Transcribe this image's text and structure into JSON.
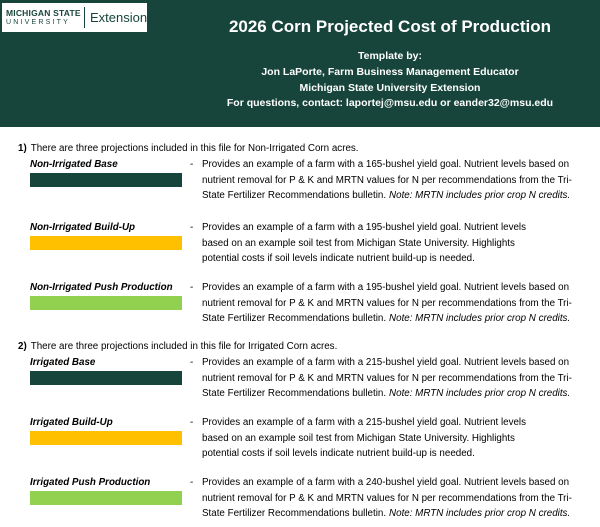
{
  "header": {
    "logo": {
      "line1": "MICHIGAN STATE",
      "line2": "UNIVERSITY",
      "extension": "Extension"
    },
    "title": "2026 Corn Projected Cost of Production",
    "template_lines": [
      "Template by:",
      "Jon LaPorte, Farm Business Management Educator",
      "Michigan State University Extension",
      "For questions, contact: laportej@msu.edu or eander32@msu.edu"
    ]
  },
  "sections": [
    {
      "number": "1)",
      "heading": "There are three projections included in this file for Non-Irrigated Corn acres.",
      "items": [
        {
          "label": "Non-Irrigated Base",
          "dash": "-",
          "lines": [
            "Provides an example of a farm with a 165-bushel yield goal.  Nutrient levels based on",
            "nutrient removal for P & K and MRTN values for N per recommendations from the Tri-",
            "State Fertilizer Recommendations bulletin."
          ],
          "note": "Note: MRTN includes prior crop N credits."
        },
        {
          "label": "Non-Irrigated Build-Up",
          "dash": "-",
          "lines": [
            "Provides an example of a farm with a 195-bushel yield goal.  Nutrient levels",
            "based on an example soil test from Michigan State University. Highlights",
            "potential costs if soil levels indicate nutrient build-up is needed."
          ]
        },
        {
          "label": "Non-Irrigated Push Production",
          "dash": "-",
          "lines": [
            "Provides an example of a farm with a 195-bushel yield goal.  Nutrient levels based on",
            "nutrient removal for P & K and MRTN values for N per recommendations from the Tri-",
            "State Fertilizer Recommendations bulletin."
          ],
          "note": "Note: MRTN includes prior crop N credits."
        }
      ]
    },
    {
      "number": "2)",
      "heading": "There are three projections included in this file for Irrigated Corn acres.",
      "items": [
        {
          "label": "Irrigated Base",
          "dash": "-",
          "lines": [
            "Provides an example of a farm with a 215-bushel yield goal.  Nutrient levels based on",
            "nutrient removal for P & K and MRTN values for N per recommendations from the Tri-",
            "State Fertilizer Recommendations bulletin."
          ],
          "note": "Note: MRTN includes prior crop N credits."
        },
        {
          "label": "Irrigated Build-Up",
          "dash": "-",
          "lines": [
            "Provides an example of a farm with a 215-bushel yield goal.  Nutrient levels",
            "based on an example soil test from Michigan State University. Highlights",
            "potential costs if soil levels indicate nutrient build-up is needed."
          ]
        },
        {
          "label": "Irrigated Push Production",
          "dash": "-",
          "lines": [
            "Provides an example of a farm with a 240-bushel yield goal.  Nutrient levels based on",
            "nutrient removal for P & K and MRTN values for N per recommendations from the Tri-",
            "State Fertilizer Recommendations bulletin."
          ],
          "note": "Note: MRTN includes prior crop N credits."
        }
      ]
    }
  ]
}
